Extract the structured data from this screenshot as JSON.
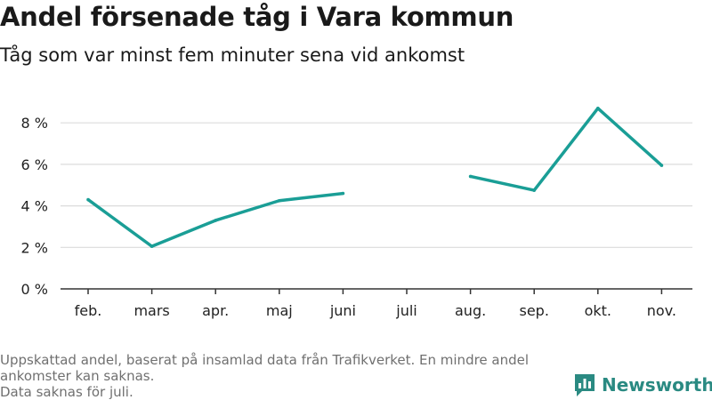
{
  "header": {
    "title": "Andel försenade tåg i Vara kommun",
    "subtitle": "Tåg som var minst fem minuter sena vid ankomst"
  },
  "footnote": {
    "line1": "Uppskattad andel, baserat på insamlad data från Trafikverket. En mindre andel ankomster kan saknas.",
    "line2": "Data saknas för juli."
  },
  "logo": {
    "text": "Newsworthy",
    "icon": "bar-chart-logo-icon"
  },
  "colors": {
    "line": "#1a9e96",
    "grid": "#dcdcdc",
    "axis": "#333333",
    "logo": "#2a8a82"
  },
  "chart_data": {
    "type": "line",
    "categories": [
      "feb.",
      "mars",
      "apr.",
      "maj",
      "juni",
      "juli",
      "aug.",
      "sep.",
      "okt.",
      "nov."
    ],
    "series": [
      {
        "values": [
          4.3,
          2.05,
          3.3,
          4.25,
          4.6,
          null,
          5.42,
          4.75,
          8.7,
          5.95
        ]
      }
    ],
    "yticks": [
      0,
      2,
      4,
      6,
      8
    ],
    "ytick_labels": [
      "0 %",
      "2 %",
      "4 %",
      "6 %",
      "8 %"
    ],
    "ylim": [
      0,
      9.5
    ],
    "grid": true,
    "xlabel": "",
    "ylabel": ""
  }
}
